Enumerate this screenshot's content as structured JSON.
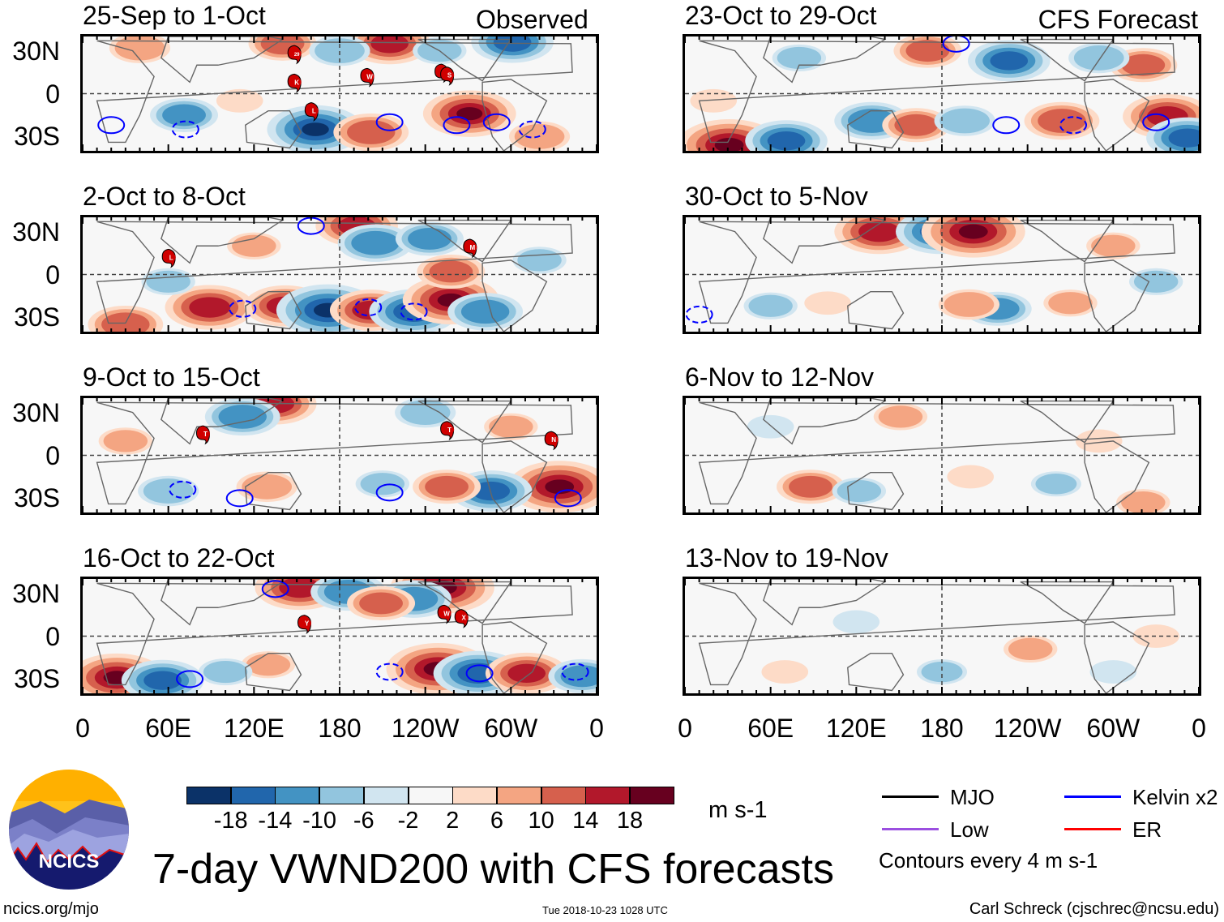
{
  "figure": {
    "title": "7-day VWND200 with CFS forecasts",
    "left_column_label": "Observed",
    "right_column_label": "CFS Forecast",
    "lat_labels": [
      "30N",
      "0",
      "30S"
    ],
    "lon_labels": [
      "0",
      "60E",
      "120E",
      "180",
      "120W",
      "60W",
      "0"
    ],
    "units": "m s-1",
    "contour_note": "Contours every 4 m s-1",
    "website": "ncics.org/mjo",
    "timestamp": "Tue 2018-10-23 1028 UTC",
    "author": "Carl Schreck (cjschrec@ncsu.edu)",
    "logo_text": "NCICS"
  },
  "colorbar": {
    "labels": [
      "-18",
      "-14",
      "-10",
      "-6",
      "-2",
      "2",
      "6",
      "10",
      "14",
      "18"
    ],
    "colors": [
      "#0b3268",
      "#2166ac",
      "#4393c3",
      "#92c5de",
      "#d1e5f0",
      "#f7f7f7",
      "#fddbc7",
      "#f4a582",
      "#d6604d",
      "#b2182b",
      "#67001f"
    ]
  },
  "legend": [
    {
      "label": "MJO",
      "color": "#000000"
    },
    {
      "label": "Kelvin x2",
      "color": "#0000ff"
    },
    {
      "label": "Low",
      "color": "#9b4fe0"
    },
    {
      "label": "ER",
      "color": "#ff0000"
    }
  ],
  "panels": [
    {
      "title": "25-Sep to 1-Oct",
      "column": "observed",
      "anomalies": [
        [
          271,
          -14,
          17
        ],
        [
          301,
          36,
          -14
        ],
        [
          163,
          -25,
          -18
        ],
        [
          202,
          -27,
          12
        ],
        [
          71,
          -15,
          -10
        ],
        [
          140,
          35,
          10
        ],
        [
          215,
          35,
          14
        ],
        [
          40,
          32,
          8
        ],
        [
          250,
          30,
          -6
        ],
        [
          320,
          -30,
          8
        ],
        [
          180,
          30,
          -8
        ],
        [
          110,
          -5,
          4
        ]
      ],
      "kelvin_contours": [
        [
          20,
          -22,
          true
        ],
        [
          72,
          -25,
          false
        ],
        [
          262,
          -22,
          true
        ],
        [
          215,
          -20,
          true
        ],
        [
          290,
          -20,
          true
        ],
        [
          315,
          -25,
          false
        ]
      ],
      "storms": [
        [
          150,
          28,
          "29"
        ],
        [
          150,
          8,
          "K"
        ],
        [
          162,
          -12,
          "L"
        ],
        [
          201,
          12,
          "W"
        ],
        [
          253,
          15,
          "R"
        ],
        [
          257,
          13,
          "S"
        ]
      ]
    },
    {
      "title": "23-Oct to 29-Oct",
      "column": "forecast",
      "anomalies": [
        [
          31,
          -36,
          20
        ],
        [
          71,
          -33,
          -14
        ],
        [
          131,
          -19,
          -12
        ],
        [
          162,
          -22,
          10
        ],
        [
          196,
          -19,
          -8
        ],
        [
          338,
          -16,
          16
        ],
        [
          264,
          -19,
          12
        ],
        [
          227,
          23,
          -14
        ],
        [
          321,
          20,
          10
        ],
        [
          352,
          -31,
          -14
        ],
        [
          170,
          30,
          10
        ],
        [
          290,
          25,
          -8
        ],
        [
          80,
          25,
          -6
        ],
        [
          20,
          -5,
          4
        ]
      ],
      "kelvin_contours": [
        [
          225,
          -22,
          true
        ],
        [
          272,
          -22,
          false
        ],
        [
          330,
          -20,
          true
        ],
        [
          190,
          35,
          true
        ]
      ],
      "storms": []
    },
    {
      "title": "2-Oct to 8-Oct",
      "column": "observed",
      "anomalies": [
        [
          89,
          -23,
          16
        ],
        [
          142,
          -22,
          14
        ],
        [
          172,
          -25,
          -20
        ],
        [
          202,
          -25,
          14
        ],
        [
          232,
          -26,
          -16
        ],
        [
          258,
          -18,
          18
        ],
        [
          258,
          2,
          10
        ],
        [
          282,
          -26,
          -12
        ],
        [
          192,
          34,
          14
        ],
        [
          205,
          22,
          -12
        ],
        [
          243,
          25,
          -10
        ],
        [
          30,
          -35,
          12
        ],
        [
          120,
          20,
          6
        ],
        [
          320,
          10,
          -6
        ],
        [
          60,
          -5,
          -6
        ]
      ],
      "kelvin_contours": [
        [
          112,
          -24,
          false
        ],
        [
          200,
          -23,
          false
        ],
        [
          232,
          -26,
          false
        ],
        [
          160,
          34,
          true
        ]
      ],
      "storms": [
        [
          62,
          12,
          "L"
        ],
        [
          273,
          19,
          "M"
        ]
      ]
    },
    {
      "title": "30-Oct to 5-Nov",
      "column": "forecast",
      "anomalies": [
        [
          136,
          30,
          16
        ],
        [
          179,
          30,
          -16
        ],
        [
          202,
          30,
          20
        ],
        [
          219,
          -24,
          -10
        ],
        [
          199,
          -21,
          8
        ],
        [
          60,
          -22,
          -6
        ],
        [
          300,
          20,
          6
        ],
        [
          330,
          -5,
          -6
        ],
        [
          100,
          -20,
          4
        ],
        [
          270,
          -20,
          6
        ]
      ],
      "kelvin_contours": [
        [
          370,
          -28,
          false
        ]
      ],
      "storms": []
    },
    {
      "title": "9-Oct to 15-Oct",
      "column": "observed",
      "anomalies": [
        [
          334,
          -22,
          20
        ],
        [
          286,
          -25,
          -14
        ],
        [
          135,
          36,
          14
        ],
        [
          112,
          27,
          -12
        ],
        [
          129,
          -22,
          8
        ],
        [
          255,
          -22,
          10
        ],
        [
          60,
          -25,
          -8
        ],
        [
          210,
          -20,
          -6
        ],
        [
          300,
          20,
          6
        ],
        [
          240,
          30,
          -8
        ],
        [
          30,
          10,
          6
        ]
      ],
      "kelvin_contours": [
        [
          215,
          -26,
          true
        ],
        [
          110,
          -30,
          true
        ],
        [
          340,
          -30,
          true
        ],
        [
          70,
          -24,
          false
        ]
      ],
      "storms": [
        [
          86,
          15,
          "T"
        ],
        [
          257,
          18,
          "T"
        ],
        [
          330,
          11,
          "N"
        ]
      ]
    },
    {
      "title": "6-Nov to 12-Nov",
      "column": "forecast",
      "anomalies": [
        [
          88,
          -22,
          10
        ],
        [
          151,
          27,
          6
        ],
        [
          122,
          -25,
          -6
        ],
        [
          321,
          -33,
          6
        ],
        [
          260,
          -20,
          -5
        ],
        [
          290,
          10,
          4
        ],
        [
          200,
          -15,
          4
        ],
        [
          60,
          20,
          -4
        ]
      ],
      "kelvin_contours": [],
      "storms": []
    },
    {
      "title": "16-Oct to 22-Oct",
      "column": "observed",
      "anomalies": [
        [
          249,
          -23,
          20
        ],
        [
          277,
          -26,
          -16
        ],
        [
          311,
          -26,
          14
        ],
        [
          24,
          -29,
          18
        ],
        [
          56,
          -31,
          -14
        ],
        [
          152,
          34,
          16
        ],
        [
          252,
          34,
          20
        ],
        [
          186,
          31,
          -12
        ],
        [
          232,
          26,
          -12
        ],
        [
          209,
          23,
          10
        ],
        [
          130,
          -20,
          6
        ],
        [
          350,
          -28,
          -10
        ],
        [
          100,
          -25,
          -6
        ]
      ],
      "kelvin_contours": [
        [
          135,
          33,
          true
        ],
        [
          75,
          -30,
          true
        ],
        [
          278,
          -26,
          true
        ],
        [
          345,
          -25,
          false
        ],
        [
          215,
          -25,
          false
        ]
      ],
      "storms": [
        [
          157,
          9,
          "Y"
        ],
        [
          255,
          16,
          "W"
        ],
        [
          267,
          13,
          "X"
        ]
      ]
    },
    {
      "title": "13-Nov to 19-Nov",
      "column": "forecast",
      "anomalies": [
        [
          242,
          -9,
          6
        ],
        [
          180,
          -25,
          -5
        ],
        [
          330,
          0,
          4
        ],
        [
          70,
          -25,
          4
        ],
        [
          120,
          10,
          -4
        ],
        [
          300,
          -25,
          -4
        ]
      ],
      "kelvin_contours": [],
      "storms": []
    }
  ]
}
